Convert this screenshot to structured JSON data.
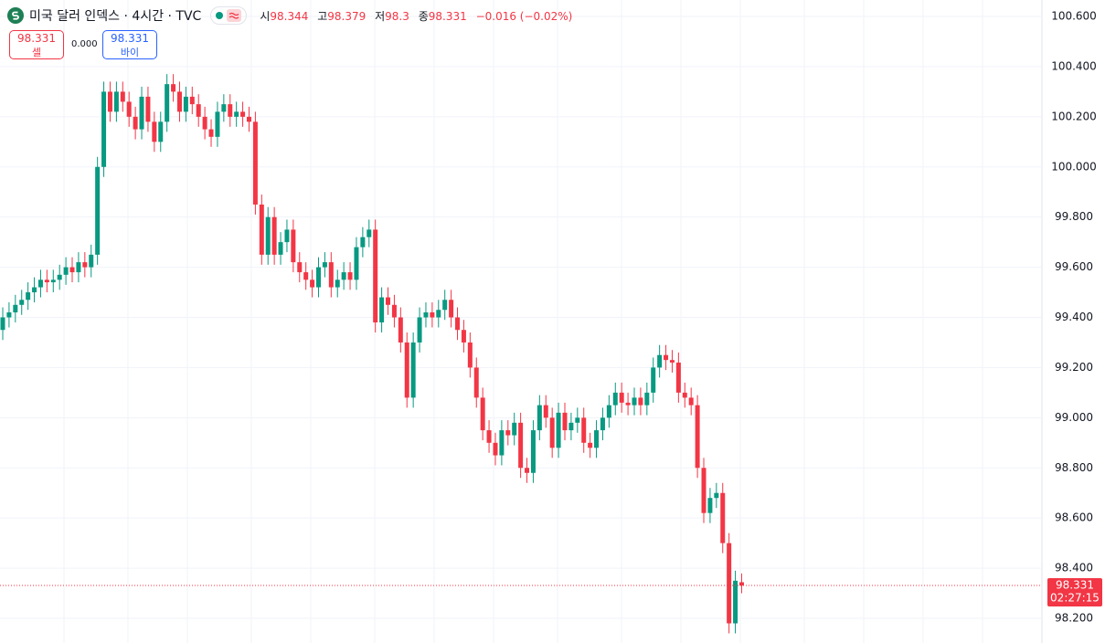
{
  "chart_data": {
    "type": "candlestick",
    "title": "미국 달러 인덱스 · 4시간 · TVC",
    "up_color": "#089981",
    "down_color": "#f23645",
    "grid": true,
    "ylim": [
      98.1017,
      100.6656
    ],
    "yticks": [
      {
        "value": 98.2,
        "label": "98.200"
      },
      {
        "value": 98.4,
        "label": "98.400"
      },
      {
        "value": 98.6,
        "label": "98.600"
      },
      {
        "value": 98.8,
        "label": "98.800"
      },
      {
        "value": 99.0,
        "label": "99.000"
      },
      {
        "value": 99.2,
        "label": "99.200"
      },
      {
        "value": 99.4,
        "label": "99.400"
      },
      {
        "value": 99.6,
        "label": "99.600"
      },
      {
        "value": 99.8,
        "label": "99.800"
      },
      {
        "value": 100.0,
        "label": "100.000"
      },
      {
        "value": 100.2,
        "label": "100.200"
      },
      {
        "value": 100.4,
        "label": "100.400"
      },
      {
        "value": 100.6,
        "label": "100.600"
      }
    ],
    "open": [
      99.35,
      99.4,
      99.42,
      99.45,
      99.47,
      99.5,
      99.52,
      99.55,
      99.54,
      99.55,
      99.57,
      99.6,
      99.58,
      99.62,
      99.6,
      99.65,
      100.0,
      100.3,
      100.22,
      100.3,
      100.26,
      100.2,
      100.15,
      100.28,
      100.18,
      100.1,
      100.18,
      100.33,
      100.3,
      100.22,
      100.28,
      100.25,
      100.2,
      100.15,
      100.12,
      100.22,
      100.25,
      100.2,
      100.22,
      100.2,
      100.18,
      99.85,
      99.65,
      99.8,
      99.65,
      99.7,
      99.75,
      99.62,
      99.58,
      99.55,
      99.52,
      99.6,
      99.62,
      99.52,
      99.55,
      99.58,
      99.55,
      99.68,
      99.72,
      99.75,
      99.38,
      99.48,
      99.45,
      99.4,
      99.3,
      99.08,
      99.3,
      99.4,
      99.42,
      99.4,
      99.43,
      99.47,
      99.4,
      99.35,
      99.3,
      99.2,
      99.08,
      98.95,
      98.9,
      98.85,
      98.95,
      98.93,
      98.98,
      98.8,
      98.78,
      98.95,
      99.05,
      99.0,
      98.88,
      99.02,
      98.95,
      98.98,
      99.0,
      98.9,
      98.88,
      98.95,
      99.0,
      99.05,
      99.1,
      99.06,
      99.05,
      99.08,
      99.05,
      99.1,
      99.2,
      99.25,
      99.23,
      99.22,
      99.1,
      99.08,
      99.05,
      98.8,
      98.62,
      98.68,
      98.7,
      98.5,
      98.18,
      98.344
    ],
    "high": [
      99.44,
      99.46,
      99.49,
      99.51,
      99.54,
      99.56,
      99.59,
      99.59,
      99.59,
      99.61,
      99.64,
      99.64,
      99.66,
      99.66,
      99.69,
      100.04,
      100.34,
      100.34,
      100.34,
      100.34,
      100.3,
      100.24,
      100.32,
      100.32,
      100.22,
      100.22,
      100.37,
      100.37,
      100.34,
      100.32,
      100.32,
      100.29,
      100.24,
      100.19,
      100.26,
      100.29,
      100.29,
      100.26,
      100.26,
      100.24,
      100.22,
      99.89,
      99.84,
      99.84,
      99.74,
      99.79,
      99.79,
      99.66,
      99.62,
      99.59,
      99.64,
      99.66,
      99.66,
      99.59,
      99.62,
      99.62,
      99.72,
      99.76,
      99.79,
      99.79,
      99.52,
      99.52,
      99.49,
      99.44,
      99.34,
      99.34,
      99.44,
      99.46,
      99.46,
      99.47,
      99.51,
      99.51,
      99.44,
      99.39,
      99.34,
      99.24,
      99.12,
      98.99,
      98.94,
      98.99,
      98.99,
      99.02,
      99.02,
      98.84,
      98.99,
      99.09,
      99.09,
      99.04,
      99.06,
      99.06,
      99.02,
      99.04,
      99.04,
      98.94,
      98.99,
      99.04,
      99.09,
      99.14,
      99.14,
      99.1,
      99.12,
      99.12,
      99.14,
      99.24,
      99.29,
      99.29,
      99.27,
      99.26,
      99.14,
      99.12,
      99.09,
      98.84,
      98.72,
      98.74,
      98.74,
      98.54,
      98.39,
      98.379
    ],
    "low": [
      99.31,
      99.36,
      99.38,
      99.41,
      99.43,
      99.46,
      99.48,
      99.5,
      99.5,
      99.51,
      99.53,
      99.54,
      99.54,
      99.56,
      99.56,
      99.61,
      99.96,
      100.18,
      100.18,
      100.22,
      100.16,
      100.11,
      100.11,
      100.14,
      100.06,
      100.06,
      100.14,
      100.26,
      100.18,
      100.18,
      100.21,
      100.16,
      100.11,
      100.08,
      100.08,
      100.18,
      100.16,
      100.16,
      100.16,
      100.14,
      99.81,
      99.61,
      99.61,
      99.61,
      99.61,
      99.66,
      99.58,
      99.54,
      99.51,
      99.48,
      99.48,
      99.56,
      99.48,
      99.48,
      99.51,
      99.51,
      99.51,
      99.64,
      99.68,
      99.34,
      99.34,
      99.41,
      99.36,
      99.26,
      99.04,
      99.04,
      99.26,
      99.36,
      99.36,
      99.36,
      99.39,
      99.36,
      99.31,
      99.26,
      99.16,
      99.04,
      98.91,
      98.86,
      98.81,
      98.81,
      98.89,
      98.89,
      98.76,
      98.74,
      98.74,
      98.91,
      98.96,
      98.84,
      98.84,
      98.91,
      98.91,
      98.94,
      98.86,
      98.84,
      98.84,
      98.91,
      98.96,
      99.01,
      99.02,
      99.01,
      99.01,
      99.01,
      99.01,
      99.06,
      99.16,
      99.19,
      99.18,
      99.06,
      99.04,
      99.01,
      98.76,
      98.58,
      98.58,
      98.64,
      98.46,
      98.14,
      98.14,
      98.3
    ],
    "close": [
      99.4,
      99.42,
      99.45,
      99.47,
      99.5,
      99.52,
      99.55,
      99.54,
      99.55,
      99.57,
      99.6,
      99.58,
      99.62,
      99.6,
      99.65,
      100.0,
      100.3,
      100.22,
      100.3,
      100.26,
      100.2,
      100.15,
      100.28,
      100.18,
      100.1,
      100.18,
      100.33,
      100.3,
      100.22,
      100.28,
      100.25,
      100.2,
      100.15,
      100.12,
      100.22,
      100.25,
      100.2,
      100.22,
      100.2,
      100.18,
      99.85,
      99.65,
      99.8,
      99.65,
      99.7,
      99.75,
      99.62,
      99.58,
      99.55,
      99.52,
      99.6,
      99.62,
      99.52,
      99.55,
      99.58,
      99.55,
      99.68,
      99.72,
      99.75,
      99.38,
      99.48,
      99.45,
      99.4,
      99.3,
      99.08,
      99.3,
      99.4,
      99.42,
      99.4,
      99.43,
      99.47,
      99.4,
      99.35,
      99.3,
      99.2,
      99.08,
      98.95,
      98.9,
      98.85,
      98.95,
      98.93,
      98.98,
      98.8,
      98.78,
      98.95,
      99.05,
      99.0,
      98.88,
      99.02,
      98.95,
      98.98,
      99.0,
      98.9,
      98.88,
      98.95,
      99.0,
      99.05,
      99.1,
      99.06,
      99.05,
      99.08,
      99.05,
      99.1,
      99.2,
      99.25,
      99.23,
      99.22,
      99.1,
      99.08,
      99.05,
      98.8,
      98.62,
      98.68,
      98.7,
      98.5,
      98.18,
      98.35,
      98.331
    ]
  },
  "header": {
    "open_label": "시",
    "high_label": "고",
    "low_label": "저",
    "close_label": "종",
    "change": "−0.016 (−0.02%)",
    "sell_label": "셀",
    "buy_label": "바이",
    "spread": "0.000",
    "countdown": "02:27:15"
  }
}
